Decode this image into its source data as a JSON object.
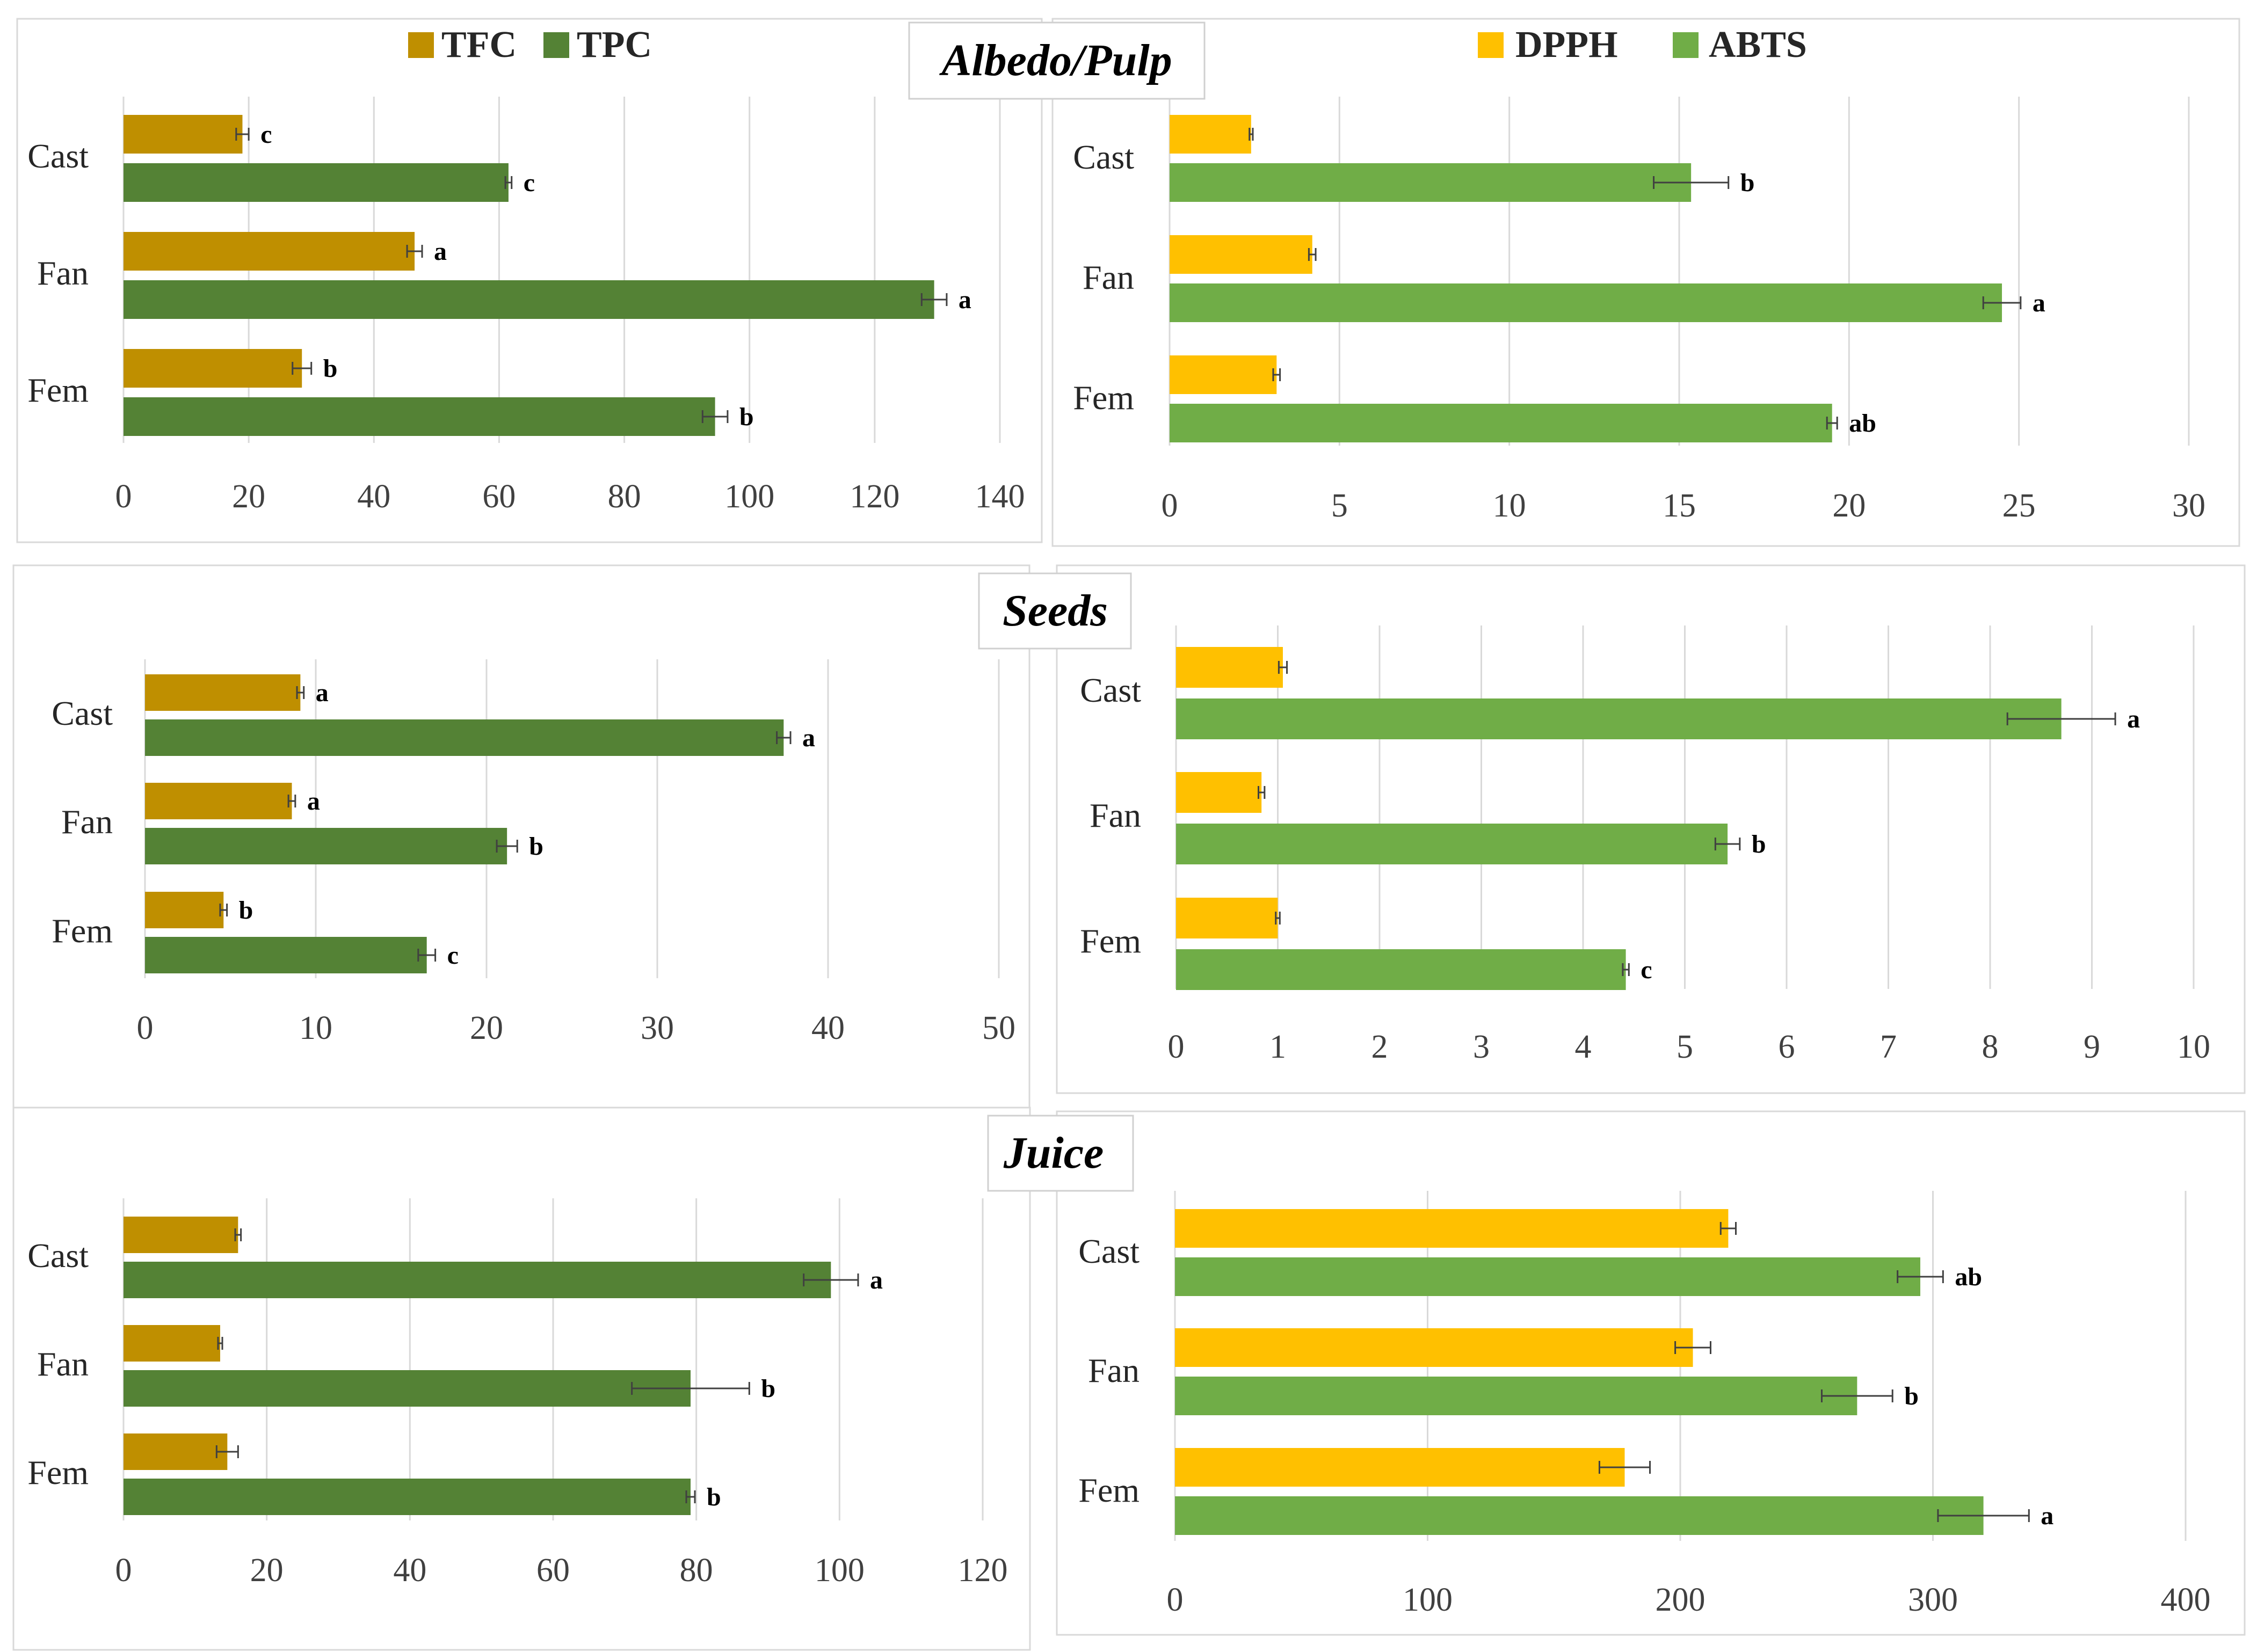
{
  "sections": [
    {
      "title": "Albedo/Pulp"
    },
    {
      "title": "Seeds"
    },
    {
      "title": "Juice"
    }
  ],
  "colors": {
    "TFC": "#bf8f00",
    "TPC": "#548235",
    "DPPH": "#ffc000",
    "ABTS": "#70ad47"
  },
  "legends": {
    "left": [
      {
        "name": "TFC",
        "color": "#bf8f00"
      },
      {
        "name": "TPC",
        "color": "#548235"
      }
    ],
    "right": [
      {
        "name": "DPPH",
        "color": "#ffc000"
      },
      {
        "name": "ABTS",
        "color": "#70ad47"
      }
    ]
  },
  "chart_data": [
    {
      "type": "bar",
      "orientation": "horizontal",
      "section": "Albedo/Pulp",
      "categories": [
        "Cast",
        "Fan",
        "Fem"
      ],
      "xlim": [
        0,
        140
      ],
      "xticks": [
        0,
        20,
        40,
        60,
        80,
        100,
        120,
        140
      ],
      "grid": true,
      "series": [
        {
          "name": "TFC",
          "values": [
            19,
            46.5,
            28.5
          ],
          "errors": [
            1,
            1.2,
            1.5
          ],
          "letters": [
            "c",
            "a",
            "b"
          ]
        },
        {
          "name": "TPC",
          "values": [
            61.5,
            129.5,
            94.5
          ],
          "errors": [
            0.5,
            2,
            2
          ],
          "letters": [
            "c",
            "a",
            "b"
          ]
        }
      ]
    },
    {
      "type": "bar",
      "orientation": "horizontal",
      "section": "Albedo/Pulp",
      "categories": [
        "Cast",
        "Fan",
        "Fem"
      ],
      "xlim": [
        0,
        30
      ],
      "xticks": [
        0,
        5,
        10,
        15,
        20,
        25,
        30
      ],
      "grid": true,
      "series": [
        {
          "name": "DPPH",
          "values": [
            2.4,
            4.2,
            3.15
          ],
          "errors": [
            0.05,
            0.1,
            0.1
          ],
          "letters": [
            "",
            "",
            ""
          ]
        },
        {
          "name": "ABTS",
          "values": [
            15.35,
            24.5,
            19.5
          ],
          "errors": [
            1.1,
            0.55,
            0.15
          ],
          "letters": [
            "b",
            "a",
            "ab"
          ]
        }
      ]
    },
    {
      "type": "bar",
      "orientation": "horizontal",
      "section": "Seeds",
      "categories": [
        "Cast",
        "Fan",
        "Fem"
      ],
      "xlim": [
        0,
        50
      ],
      "xticks": [
        0,
        10,
        20,
        30,
        40,
        50
      ],
      "grid": true,
      "series": [
        {
          "name": "TFC",
          "values": [
            9.1,
            8.6,
            4.6
          ],
          "errors": [
            0.2,
            0.2,
            0.2
          ],
          "letters": [
            "a",
            "a",
            "b"
          ]
        },
        {
          "name": "TPC",
          "values": [
            37.4,
            21.2,
            16.5
          ],
          "errors": [
            0.4,
            0.6,
            0.5
          ],
          "letters": [
            "a",
            "b",
            "c"
          ]
        }
      ]
    },
    {
      "type": "bar",
      "orientation": "horizontal",
      "section": "Seeds",
      "categories": [
        "Cast",
        "Fan",
        "Fem"
      ],
      "xlim": [
        0,
        10
      ],
      "xticks": [
        0,
        1,
        2,
        3,
        4,
        5,
        6,
        7,
        8,
        9,
        10
      ],
      "grid": true,
      "series": [
        {
          "name": "DPPH",
          "values": [
            1.05,
            0.84,
            1.0
          ],
          "errors": [
            0.04,
            0.03,
            0.02
          ],
          "letters": [
            "",
            "",
            ""
          ]
        },
        {
          "name": "ABTS",
          "values": [
            8.7,
            5.42,
            4.42
          ],
          "errors": [
            0.53,
            0.12,
            0.03
          ],
          "letters": [
            "a",
            "b",
            "c"
          ]
        }
      ]
    },
    {
      "type": "bar",
      "orientation": "horizontal",
      "section": "Juice",
      "categories": [
        "Cast",
        "Fan",
        "Fem"
      ],
      "xlim": [
        0,
        120
      ],
      "xticks": [
        0,
        20,
        40,
        60,
        80,
        100,
        120
      ],
      "grid": true,
      "series": [
        {
          "name": "TFC",
          "values": [
            16,
            13.5,
            14.5
          ],
          "errors": [
            0.4,
            0.3,
            1.5
          ],
          "letters": [
            "",
            "",
            ""
          ]
        },
        {
          "name": "TPC",
          "values": [
            98.8,
            79.2,
            79.2
          ],
          "errors": [
            3.8,
            8.2,
            0.6
          ],
          "letters": [
            "a",
            "b",
            "b"
          ]
        }
      ]
    },
    {
      "type": "bar",
      "orientation": "horizontal",
      "section": "Juice",
      "categories": [
        "Cast",
        "Fan",
        "Fem"
      ],
      "xlim": [
        0,
        400
      ],
      "xticks": [
        0,
        100,
        200,
        300,
        400
      ],
      "grid": true,
      "series": [
        {
          "name": "DPPH",
          "values": [
            219,
            205,
            178
          ],
          "errors": [
            3,
            7,
            10
          ],
          "letters": [
            "",
            "",
            ""
          ]
        },
        {
          "name": "ABTS",
          "values": [
            295,
            270,
            320
          ],
          "errors": [
            9,
            14,
            18
          ],
          "letters": [
            "ab",
            "b",
            "a"
          ]
        }
      ]
    }
  ]
}
